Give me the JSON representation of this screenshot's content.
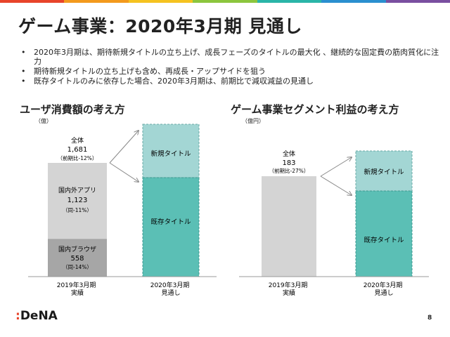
{
  "title": "ゲーム事業：2020年3月期 見通し",
  "bullets": [
    "2020年3月期は、期待新規タイトルの立ち上げ、成長フェーズのタイトルの最大化 、継続的な固定費の筋肉質化に注力",
    "期待新規タイトルの立ち上げも含め、再成長・アップサイドを狙う",
    "既存タイトルのみに依存した場合、2020年3月期は、前期比で減収減益の見通し"
  ],
  "colors": {
    "top_bar": [
      "#e8442b",
      "#f39a1d",
      "#f5c320",
      "#8cc63e",
      "#2bb5a8",
      "#2a8fcf",
      "#7a4fa0"
    ],
    "gray_light": "#d4d4d4",
    "gray_dark": "#a6a6a6",
    "teal_light": "#a3d6d4",
    "teal_dark": "#5bbfb5"
  },
  "footer": {
    "logo": "DeNA",
    "logo_prefix": ":",
    "page": "8"
  },
  "chart_data": [
    {
      "type": "bar",
      "title": "ユーザ消費額の考え方",
      "unit": "（億）",
      "categories": [
        "2019年3月期\n実績",
        "2020年3月期\n見通し"
      ],
      "total": {
        "label": "全体",
        "value": "1,681",
        "note": "（前期比-12%）"
      },
      "bar_2019": [
        {
          "name": "国内ブラウザ",
          "value": 558,
          "value_label": "558",
          "note": "（同-14%）"
        },
        {
          "name": "国内外アプリ",
          "value": 1123,
          "value_label": "1,123",
          "note": "（同-11%）"
        }
      ],
      "bar_2020": [
        {
          "name": "既存タイトル"
        },
        {
          "name": "新規タイトル"
        }
      ]
    },
    {
      "type": "bar",
      "title": "ゲーム事業セグメント利益の考え方",
      "unit": "（億円）",
      "categories": [
        "2019年3月期\n実績",
        "2020年3月期\n見通し"
      ],
      "total": {
        "label": "全体",
        "value": "183",
        "note": "（前期比-27%）"
      },
      "bar_2019": [
        {
          "value": 183
        }
      ],
      "bar_2020": [
        {
          "name": "既存タイトル"
        },
        {
          "name": "新規タイトル"
        }
      ]
    }
  ]
}
